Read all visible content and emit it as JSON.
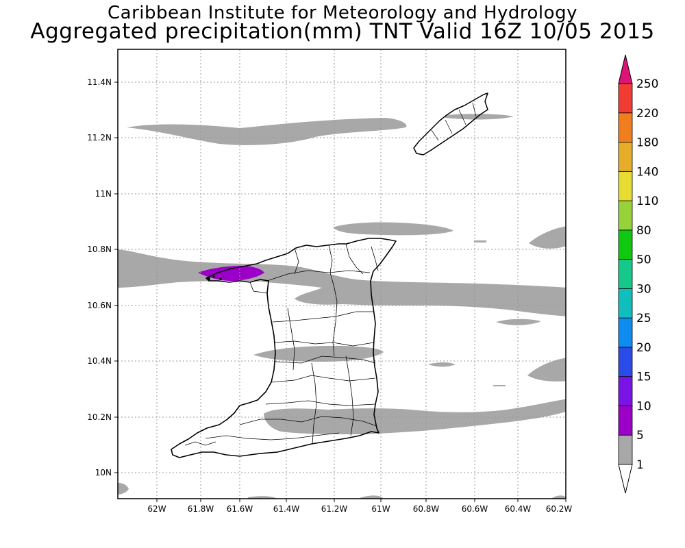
{
  "header": {
    "title_line1": "Caribbean Institute for Meteorology and Hydrology",
    "title_line2": "Aggregated precipitation(mm) TNT Valid 16Z 10/05 2015"
  },
  "map": {
    "lon_ticks": [
      "62W",
      "61.8W",
      "61.6W",
      "61.4W",
      "61.2W",
      "61W",
      "60.8W",
      "60.6W",
      "60.4W",
      "60.2W"
    ],
    "lat_ticks": [
      "11.4N",
      "11.2N",
      "11N",
      "10.8N",
      "10.6N",
      "10.4N",
      "10.2N",
      "10N"
    ],
    "lon_range": [
      -62.15,
      -60.15
    ],
    "lat_range": [
      9.9,
      11.5
    ],
    "grid": true,
    "precip_colors": {
      "light": "#a8a8a8",
      "moderate": "#9c00c8"
    }
  },
  "colorbar": {
    "labels": [
      "1",
      "5",
      "10",
      "15",
      "20",
      "25",
      "30",
      "50",
      "80",
      "110",
      "140",
      "180",
      "220",
      "250"
    ],
    "colors": [
      "#a8a8a8",
      "#9c00c8",
      "#7a14e6",
      "#2b4be8",
      "#0f8cf0",
      "#11bebe",
      "#14c98a",
      "#10c810",
      "#98d23a",
      "#e6dc32",
      "#e6ad28",
      "#f07d1e",
      "#f03c32",
      "#dc1478"
    ]
  }
}
